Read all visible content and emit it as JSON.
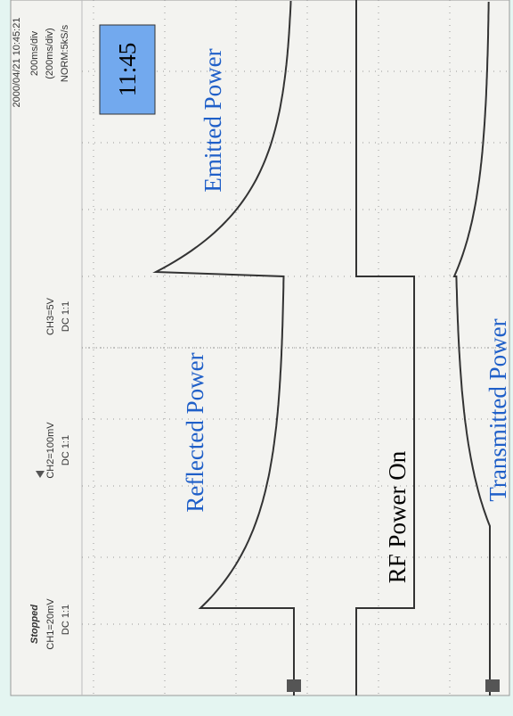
{
  "header": {
    "status": "Stopped",
    "channels": [
      {
        "scale": "CH1=20mV",
        "coupling": "DC 1:1"
      },
      {
        "scale": "CH2=100mV",
        "coupling": "DC 1:1"
      },
      {
        "scale": "CH3=5V",
        "coupling": "DC 1:1"
      }
    ],
    "timestamp": "2000/04/21 10:45:21",
    "timebase": [
      "200ms/div",
      "(200ms/div)",
      "NORM:5kS/s"
    ]
  },
  "time_box": "11:45",
  "labels": {
    "emitted": "Emitted Power",
    "reflected": "Reflected Power",
    "rf_on": "RF Power On",
    "transmitted": "Transmitted Power"
  }
}
